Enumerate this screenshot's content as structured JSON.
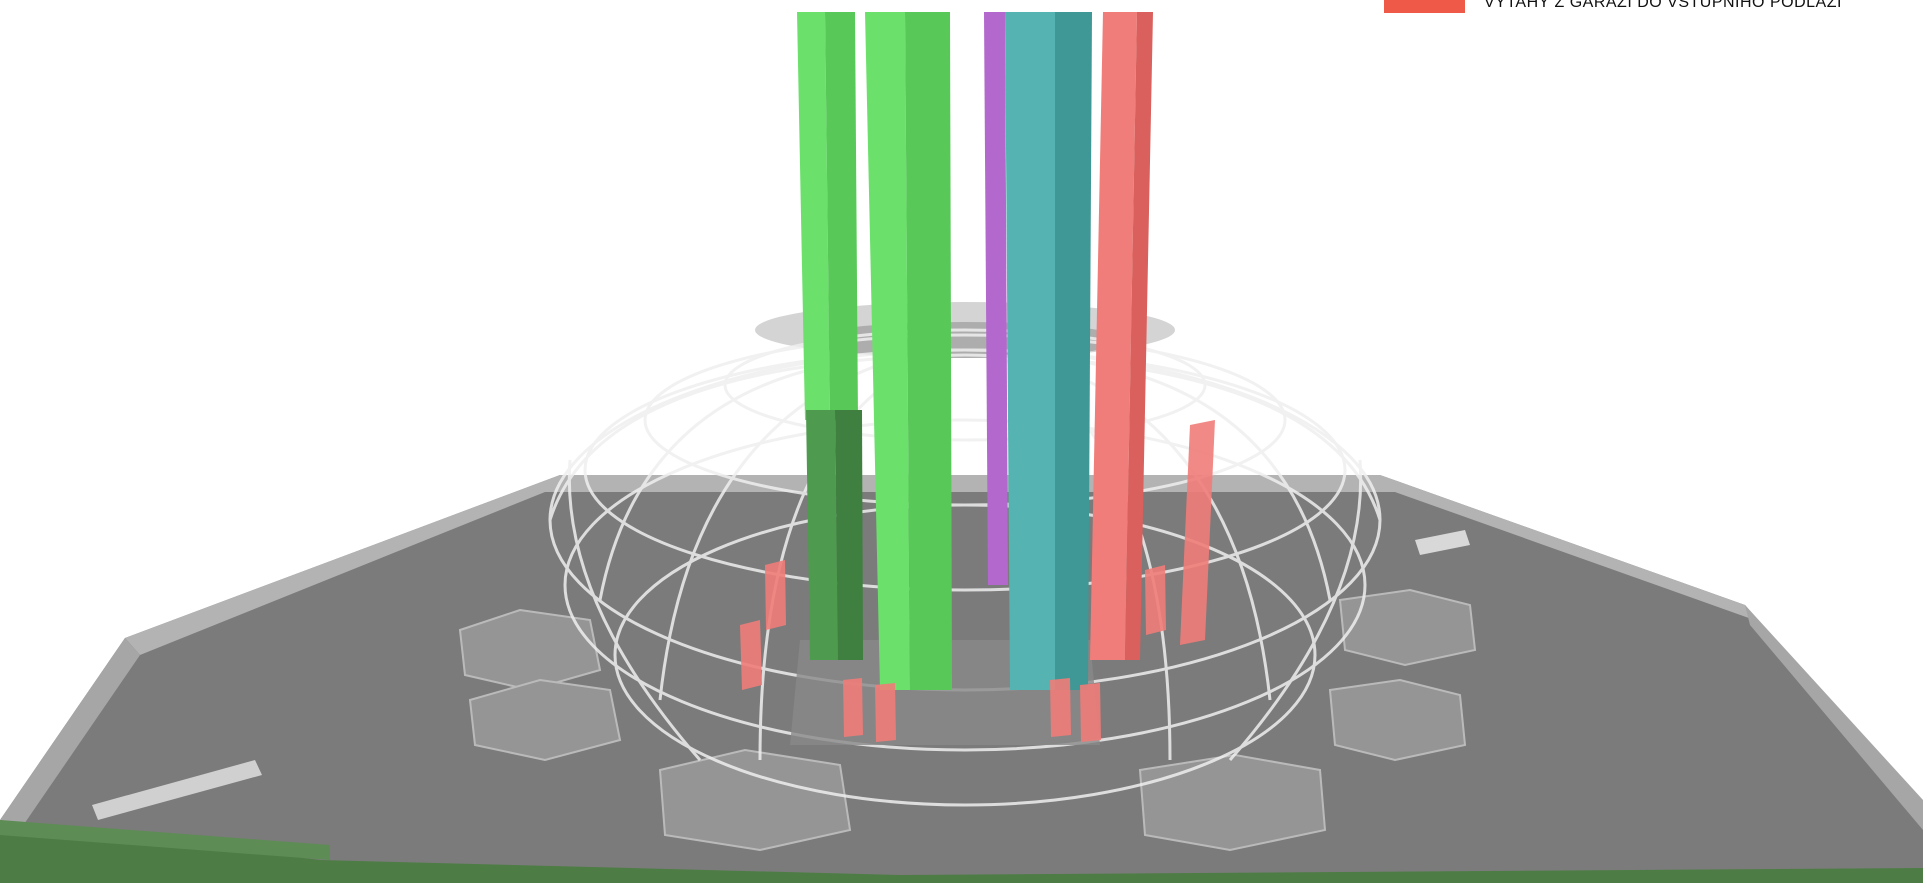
{
  "legend": {
    "items": [
      {
        "label": "VYTAHY Z GARAZI DO VSTUPNIHO PODLAZI",
        "color": "#ee5a47"
      }
    ]
  },
  "colors": {
    "floor": "#7a7a7a",
    "floor_edge": "#b8b8b8",
    "lawn": "#4d7d44",
    "green": "#6be16b",
    "green_dark": "#58c958",
    "green_deep": "#4e9a4e",
    "purple": "#b268cc",
    "teal": "#55b3b1",
    "teal_dark": "#3f9796",
    "red": "#f07d79",
    "red_dark": "#d9605c",
    "mesh": "#f2f2f2"
  },
  "icons": [
    "legend-swatch"
  ]
}
